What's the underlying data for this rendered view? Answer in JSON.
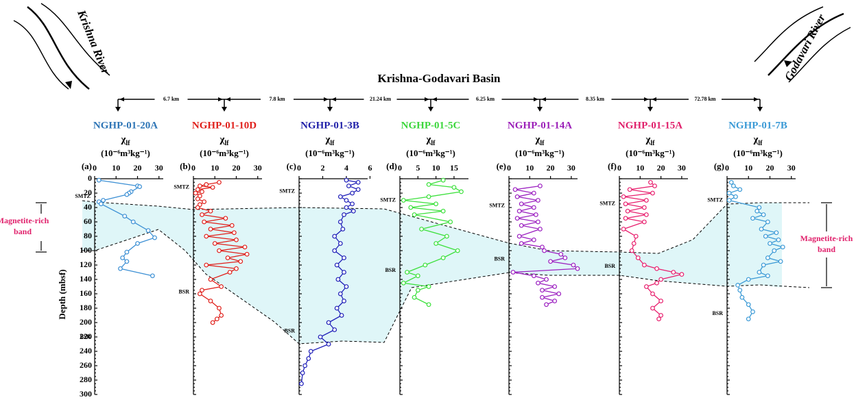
{
  "figure": {
    "title": "Krishna-Godavari Basin",
    "distances": [
      "6.7 km",
      "7.8 km",
      "21.24 km",
      "6.25 km",
      "8.35 km",
      "72.78 km"
    ],
    "rivers": [
      "Krishna River",
      "Godavari River"
    ],
    "band_label": [
      "Magnetite-rich",
      "band"
    ]
  },
  "chart_data": [
    {
      "type": "line",
      "title": "NGHP-01-20A",
      "title_color": "#2e75b6",
      "panel": "(a)",
      "xlabel": "χ",
      "xlabel_sub": "lf",
      "xunits": "(10⁻⁶m³kg⁻¹)",
      "xlim": [
        0,
        32
      ],
      "xticks": [
        0,
        10,
        20,
        30
      ],
      "ylabel": "Depth (mbsf)",
      "ylim": [
        0,
        300
      ],
      "yticks": [
        0,
        20,
        40,
        60,
        80,
        100,
        120,
        140,
        160,
        180,
        200,
        220,
        240,
        260,
        280,
        300
      ],
      "series": [
        {
          "color": "#3b8fd4",
          "x": [
            2,
            20,
            21,
            17,
            16,
            15,
            4,
            2,
            3,
            14,
            18,
            25,
            28,
            20,
            15,
            13,
            15,
            12,
            27
          ],
          "values": [
            2,
            10,
            11,
            18,
            20,
            22,
            30,
            32,
            35,
            52,
            60,
            72,
            82,
            90,
            102,
            110,
            115,
            125,
            135
          ]
        }
      ],
      "annotations": [
        {
          "text": "SMTZ",
          "y": 25
        },
        {
          "text": "BSR",
          "y": 220
        }
      ]
    },
    {
      "type": "line",
      "title": "NGHP-01-10D",
      "title_color": "#e0201b",
      "panel": "(b)",
      "xlabel": "χ",
      "xlabel_sub": "lf",
      "xunits": "(10⁻⁶m³kg⁻¹)",
      "xlim": [
        0,
        32
      ],
      "xticks": [
        0,
        10,
        20,
        30
      ],
      "series": [
        {
          "color": "#e0201b",
          "x": [
            12,
            6,
            3,
            9,
            2,
            4,
            1,
            3,
            2,
            5,
            3,
            2,
            8,
            4,
            15,
            5,
            18,
            8,
            19,
            6,
            20,
            10,
            24,
            12,
            25,
            16,
            22,
            6,
            20,
            17,
            8,
            13,
            4,
            3,
            8,
            12,
            13,
            11,
            9
          ],
          "values": [
            5,
            8,
            10,
            12,
            15,
            18,
            20,
            24,
            28,
            32,
            36,
            40,
            45,
            50,
            55,
            60,
            65,
            70,
            75,
            80,
            85,
            90,
            95,
            100,
            105,
            110,
            115,
            120,
            125,
            130,
            140,
            150,
            155,
            160,
            170,
            180,
            190,
            195,
            200
          ]
        }
      ],
      "annotations": [
        {
          "text": "SMTZ",
          "y": 12
        },
        {
          "text": "BSR",
          "y": 158
        }
      ]
    },
    {
      "type": "line",
      "title": "NGHP-01-3B",
      "title_color": "#1f1fa8",
      "panel": "(c)",
      "xlabel": "χ",
      "xlabel_sub": "lf",
      "xunits": "(10⁻⁶m³kg⁻¹)",
      "xlim": [
        0,
        5.8
      ],
      "xticks": [
        0,
        2,
        4,
        6
      ],
      "series": [
        {
          "color": "#1f1fb8",
          "x": [
            4,
            5,
            4.2,
            5,
            4.5,
            3.5,
            4,
            4.5,
            4,
            4.6,
            3.8,
            3.5,
            3.7,
            3,
            3.5,
            3,
            3.8,
            3.2,
            3.8,
            3.3,
            4,
            3.5,
            3.8,
            3.2,
            3.6,
            2.5,
            3,
            1.8,
            2.5,
            1,
            0.8,
            0.5,
            0.3,
            0.2
          ],
          "values": [
            2,
            5,
            10,
            15,
            20,
            25,
            30,
            35,
            40,
            45,
            50,
            60,
            70,
            80,
            90,
            100,
            110,
            120,
            130,
            140,
            150,
            160,
            170,
            180,
            190,
            200,
            210,
            220,
            230,
            240,
            250,
            260,
            270,
            285
          ]
        }
      ],
      "annotations": [
        {
          "text": "SMTZ",
          "y": 18
        },
        {
          "text": "BSR",
          "y": 212
        }
      ]
    },
    {
      "type": "line",
      "title": "NGHP-01-5C",
      "title_color": "#3bd63b",
      "panel": "(d)",
      "xlabel": "χ",
      "xlabel_sub": "lf",
      "xunits": "(10⁻⁶m³kg⁻¹)",
      "xlim": [
        0,
        19
      ],
      "xticks": [
        0,
        5,
        10,
        15
      ],
      "series": [
        {
          "color": "#3be03b",
          "x": [
            12,
            8,
            15,
            17,
            8,
            1,
            10,
            3,
            12,
            4,
            14,
            6,
            13,
            10,
            16,
            12,
            7,
            2,
            5,
            1,
            8,
            5,
            4,
            8
          ],
          "values": [
            2,
            8,
            12,
            18,
            25,
            30,
            35,
            40,
            45,
            50,
            60,
            70,
            80,
            90,
            100,
            110,
            120,
            130,
            135,
            145,
            150,
            155,
            165,
            175
          ]
        }
      ],
      "annotations": [
        {
          "text": "SMTZ",
          "y": 30
        },
        {
          "text": "BSR",
          "y": 128
        }
      ]
    },
    {
      "type": "line",
      "title": "NGHP-01-14A",
      "title_color": "#9b1fb8",
      "panel": "(e)",
      "xlabel": "χ",
      "xlabel_sub": "lf",
      "xunits": "(10⁻⁶m³kg⁻¹)",
      "xlim": [
        0,
        33
      ],
      "xticks": [
        0,
        10,
        20,
        30
      ],
      "series": [
        {
          "color": "#9b1fc0",
          "x": [
            15,
            3,
            12,
            4,
            14,
            6,
            12,
            5,
            13,
            4,
            14,
            6,
            15,
            5,
            12,
            6,
            16,
            17,
            25,
            27,
            20,
            31,
            33,
            2,
            12,
            18,
            14,
            22,
            16,
            24,
            16,
            22,
            18
          ],
          "values": [
            10,
            15,
            20,
            25,
            30,
            35,
            40,
            45,
            50,
            55,
            60,
            65,
            70,
            80,
            85,
            90,
            95,
            100,
            105,
            110,
            115,
            120,
            125,
            130,
            135,
            140,
            145,
            150,
            155,
            160,
            165,
            170,
            175
          ]
        }
      ],
      "annotations": [
        {
          "text": "SMTZ",
          "y": 38
        },
        {
          "text": "BSR",
          "y": 112
        }
      ]
    },
    {
      "type": "line",
      "title": "NGHP-01-15A",
      "title_color": "#e0206b",
      "panel": "(f)",
      "xlabel": "χ",
      "xlabel_sub": "lf",
      "xunits": "(10⁻⁶m³kg⁻¹)",
      "xlim": [
        0,
        33
      ],
      "xticks": [
        0,
        10,
        20,
        30
      ],
      "series": [
        {
          "color": "#e8206e",
          "x": [
            15,
            17,
            5,
            16,
            2,
            13,
            3,
            12,
            4,
            13,
            3,
            12,
            2,
            8,
            7,
            6,
            9,
            12,
            18,
            26,
            30,
            20,
            18,
            13,
            16,
            20,
            16,
            20,
            19
          ],
          "values": [
            5,
            10,
            15,
            20,
            25,
            30,
            35,
            40,
            45,
            50,
            55,
            60,
            70,
            80,
            90,
            100,
            110,
            120,
            125,
            130,
            133,
            140,
            145,
            150,
            160,
            170,
            180,
            190,
            195
          ]
        }
      ],
      "annotations": [
        {
          "text": "SMTZ",
          "y": 35
        },
        {
          "text": "BSR",
          "y": 122
        }
      ]
    },
    {
      "type": "line",
      "title": "NGHP-01-7B",
      "title_color": "#3b9ad6",
      "panel": "(g)",
      "xlabel": "χ",
      "xlabel_sub": "lf",
      "xunits": "(10⁻⁶m³kg⁻¹)",
      "xlim": [
        0,
        32
      ],
      "xticks": [
        0,
        10,
        20,
        30
      ],
      "series": [
        {
          "color": "#3b9ad6",
          "x": [
            2,
            3,
            6,
            1,
            4,
            1,
            15,
            14,
            17,
            12,
            19,
            16,
            23,
            18,
            24,
            20,
            26,
            22,
            19,
            25,
            17,
            15,
            19,
            10,
            5,
            6,
            7,
            10,
            12,
            10
          ],
          "values": [
            5,
            10,
            15,
            20,
            25,
            30,
            40,
            45,
            50,
            55,
            60,
            70,
            75,
            80,
            85,
            90,
            95,
            100,
            110,
            115,
            120,
            130,
            135,
            140,
            148,
            155,
            165,
            175,
            185,
            195
          ]
        }
      ],
      "annotations": [
        {
          "text": "SMTZ",
          "y": 30
        },
        {
          "text": "BSR",
          "y": 188
        }
      ]
    }
  ]
}
